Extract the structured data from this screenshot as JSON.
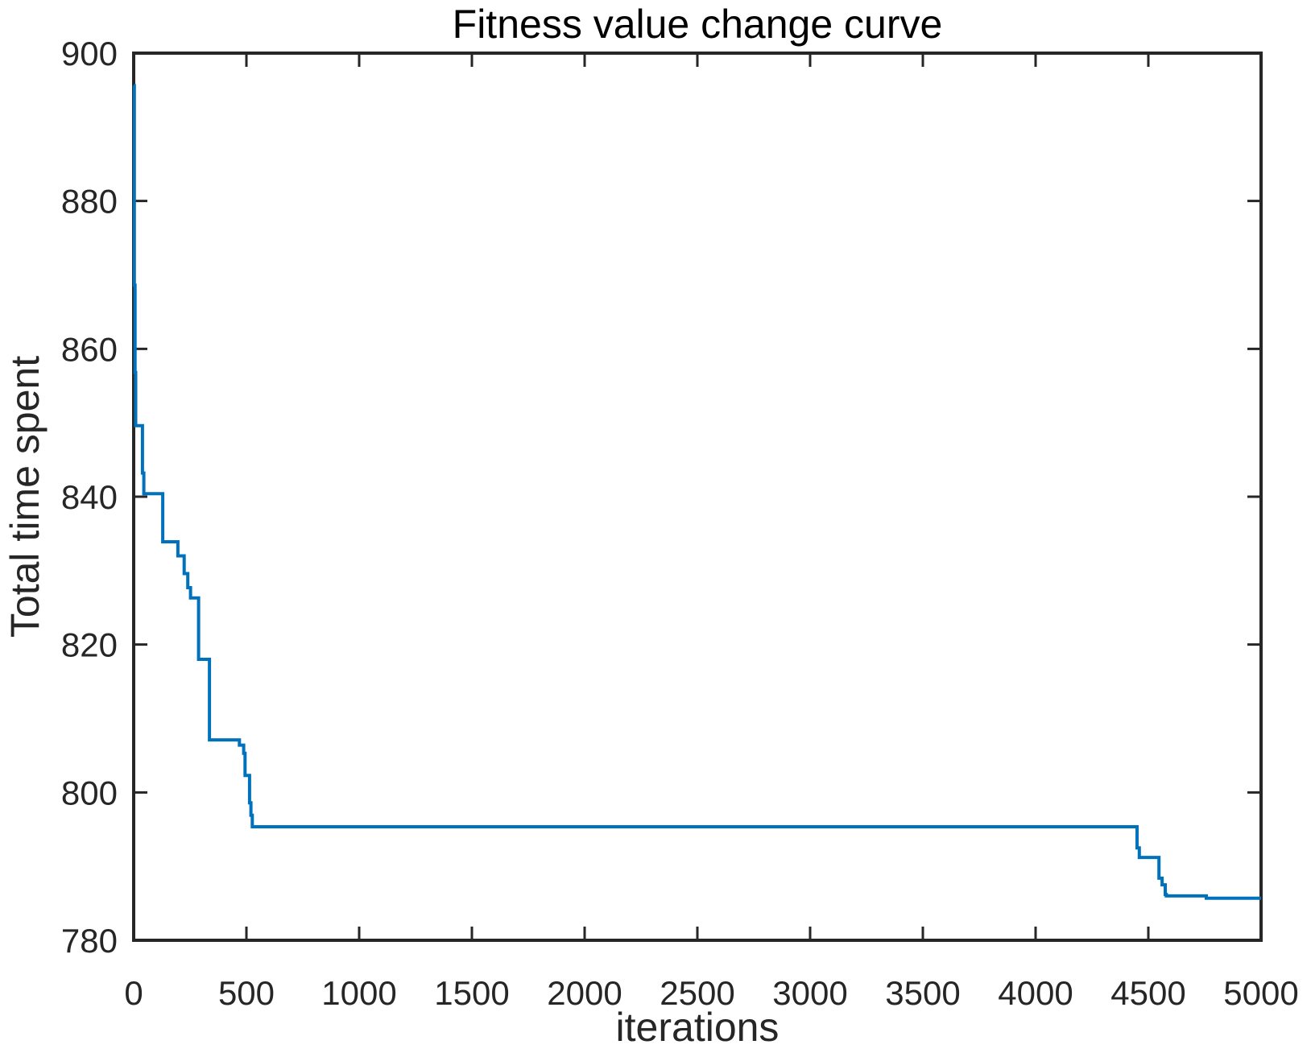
{
  "chart_data": {
    "type": "line",
    "title": "Fitness value change curve",
    "xlabel": "iterations",
    "ylabel": "Total time spent",
    "xlim": [
      0,
      5000
    ],
    "ylim": [
      780,
      900
    ],
    "xticks": [
      0,
      500,
      1000,
      1500,
      2000,
      2500,
      3000,
      3500,
      4000,
      4500,
      5000
    ],
    "yticks": [
      780,
      800,
      820,
      840,
      860,
      880,
      900
    ],
    "grid": false,
    "legend_position": "none",
    "interpolation": "steps-post",
    "line_color": "#0072BD",
    "axis_color": "#262626",
    "background_color": "#FFFFFF",
    "series": [
      {
        "name": "Total time spent",
        "points": [
          [
            0,
            895.6
          ],
          [
            3,
            868.6
          ],
          [
            6,
            856.8
          ],
          [
            9,
            849.6
          ],
          [
            39,
            843.2
          ],
          [
            45,
            840.4
          ],
          [
            129,
            833.9
          ],
          [
            196,
            832.0
          ],
          [
            224,
            829.6
          ],
          [
            240,
            827.7
          ],
          [
            252,
            826.3
          ],
          [
            288,
            818.0
          ],
          [
            336,
            807.1
          ],
          [
            469,
            806.4
          ],
          [
            488,
            805.3
          ],
          [
            494,
            802.3
          ],
          [
            514,
            798.6
          ],
          [
            520,
            796.9
          ],
          [
            526,
            795.35
          ],
          [
            4450,
            792.5
          ],
          [
            4460,
            791.2
          ],
          [
            4547,
            788.4
          ],
          [
            4561,
            787.5
          ],
          [
            4575,
            786.2
          ],
          [
            4580,
            786.0
          ],
          [
            4757,
            785.7
          ],
          [
            5000,
            785.7
          ]
        ]
      }
    ]
  }
}
